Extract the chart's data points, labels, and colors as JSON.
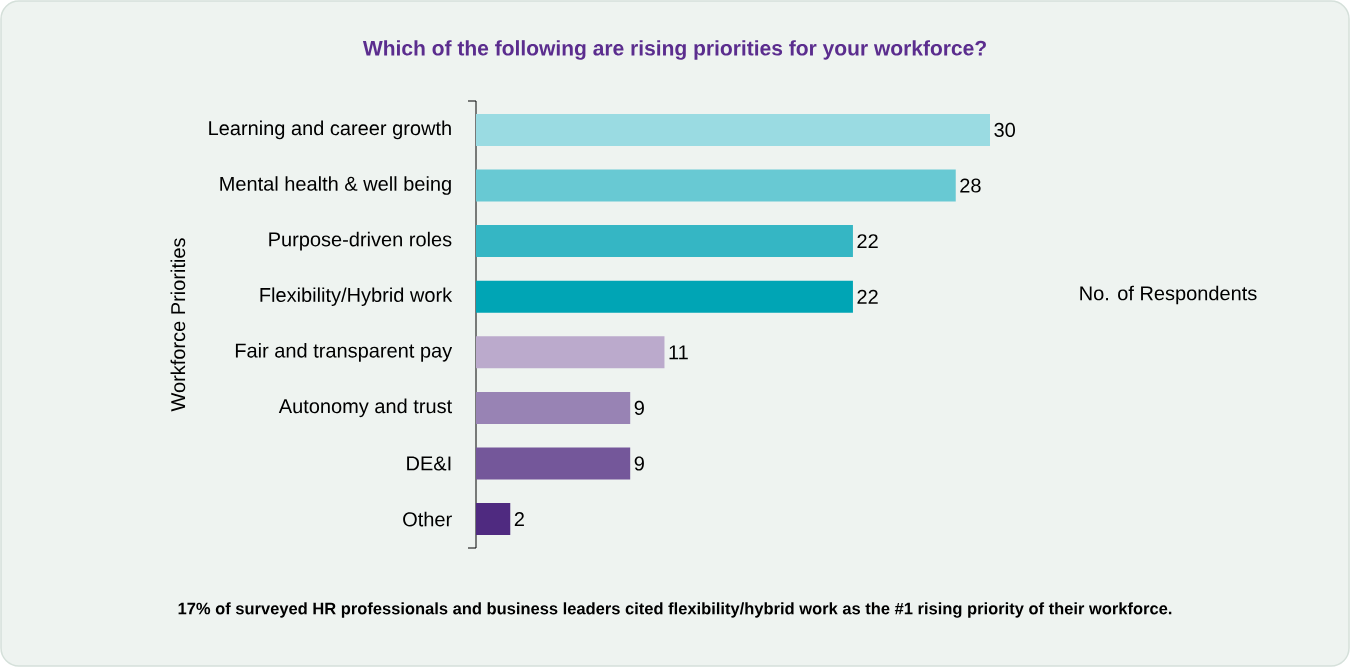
{
  "chart_data": {
    "type": "bar",
    "orientation": "horizontal",
    "title": "Which of the following are rising priorities for your workforce?",
    "xlabel": "No. of Respondents",
    "ylabel": "Workforce Priorities",
    "categories": [
      "Learning and career growth",
      "Mental health & well being",
      "Purpose-driven roles",
      "Flexibility/Hybrid work",
      "Fair and transparent pay",
      "Autonomy and trust",
      "DE&I",
      "Other"
    ],
    "values": [
      30,
      28,
      22,
      22,
      11,
      9,
      9,
      2
    ],
    "colors": [
      "#9adbe2",
      "#68c9d3",
      "#35b6c4",
      "#00a5b5",
      "#bbaacc",
      "#9883b4",
      "#74579a",
      "#4f2a80"
    ],
    "data_labels": true,
    "annotations": [
      "17% of surveyed HR professionals and business leaders cited flexibility/hybrid work as the #1 rising priority of their workforce."
    ]
  }
}
